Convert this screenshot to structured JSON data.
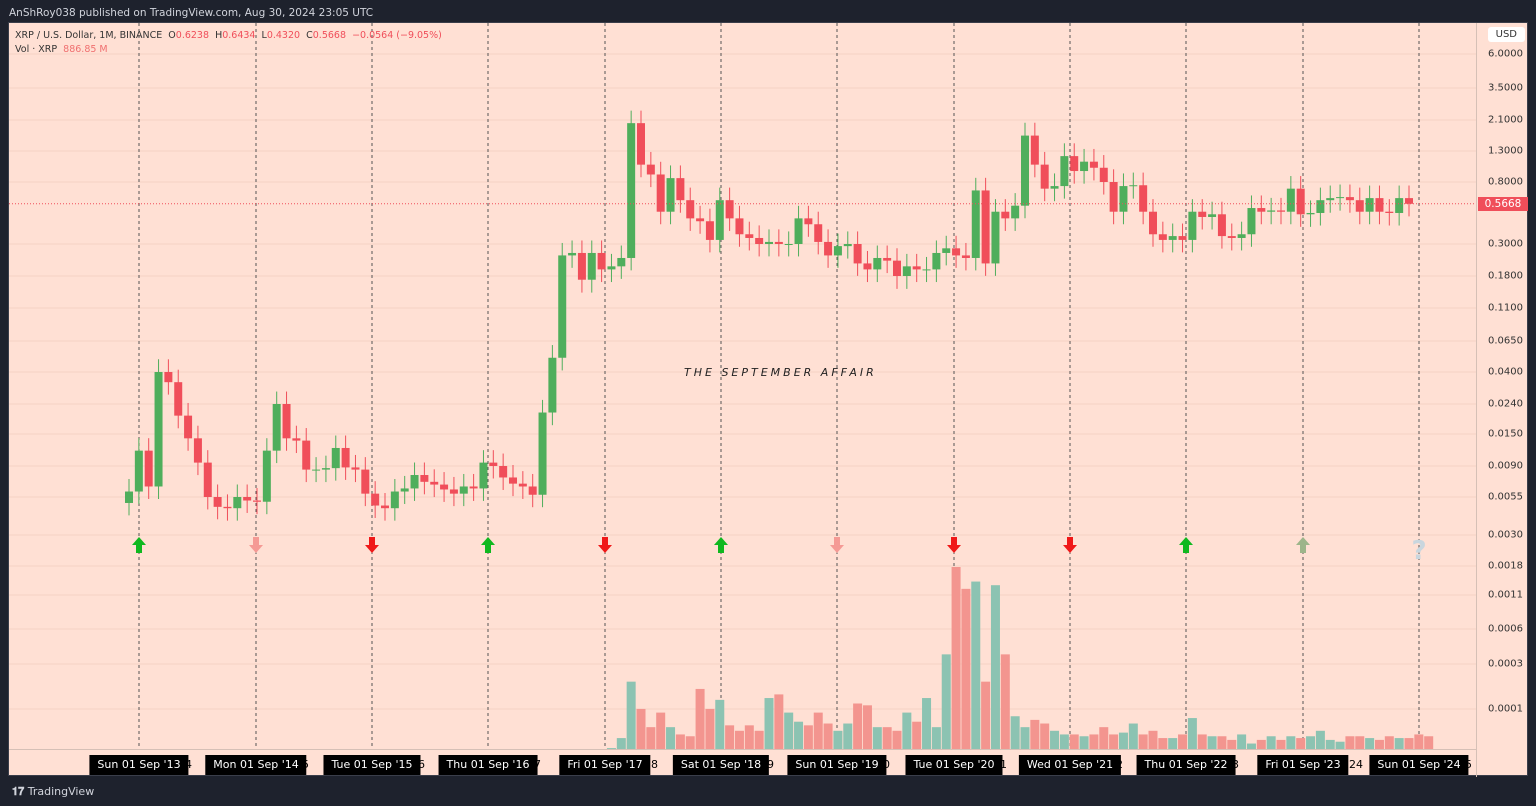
{
  "publisher": "AnShRoy038 published on TradingView.com, Aug 30, 2024 23:05 UTC",
  "legend": {
    "symbol": "XRP / U.S. Dollar, 1M, BINANCE",
    "o_label": "O",
    "o": "0.6238",
    "h_label": "H",
    "h": "0.6434",
    "l_label": "L",
    "l": "0.4320",
    "c_label": "C",
    "c": "0.5668",
    "change": "−0.0564 (−9.05%)",
    "vol_label": "Vol · XRP",
    "vol": "886.85 M"
  },
  "currency": "USD",
  "last_price": "0.5668",
  "footer": "TradingView",
  "colors": {
    "up": "#4fae5c",
    "down": "#f04e5a",
    "vol_up": "#8cc3b2",
    "vol_down": "#f3958f",
    "bg": "#ffe0d4"
  },
  "chart_data": {
    "type": "candlestick",
    "title": "THE SEPTEMBER AFFAIR",
    "scale": "log",
    "start": "Aug 2013",
    "interval": "1M",
    "y_ticks": [
      "6.0000",
      "3.5000",
      "2.1000",
      "1.3000",
      "0.8000",
      "0.3000",
      "0.1800",
      "0.1100",
      "0.0650",
      "0.0400",
      "0.0240",
      "0.0150",
      "0.0090",
      "0.0055",
      "0.0030",
      "0.0018",
      "0.0011",
      "0.0006",
      "0.0003",
      "0.0001"
    ],
    "x_labels": [
      "Sun 01 Sep '13",
      "Mon 01 Sep '14",
      "Tue 01 Sep '15",
      "Thu 01 Sep '16",
      "Fri 01 Sep '17",
      "Sat 01 Sep '18",
      "Sun 01 Sep '19",
      "Tue 01 Sep '20",
      "Wed 01 Sep '21",
      "Thu 01 Sep '22",
      "Fri 01 Sep '23",
      "Sun 01 Sep '24"
    ],
    "x_suffix": [
      "4",
      "5",
      "6",
      "7",
      "8",
      "9",
      "0",
      "1",
      "2",
      "3",
      "24",
      "5"
    ],
    "september_signals": [
      "up",
      "down-faded",
      "down",
      "up",
      "down",
      "up",
      "down-faded",
      "down",
      "down",
      "up",
      "up-faded",
      "unknown"
    ],
    "first_open": 0.005,
    "closes": [
      0.006,
      0.0115,
      0.0065,
      0.04,
      0.034,
      0.02,
      0.014,
      0.0095,
      0.0055,
      0.0047,
      0.0046,
      0.0055,
      0.0052,
      0.0051,
      0.0115,
      0.024,
      0.014,
      0.0135,
      0.0085,
      0.0085,
      0.0087,
      0.012,
      0.0088,
      0.0085,
      0.0058,
      0.0048,
      0.0046,
      0.006,
      0.0063,
      0.0078,
      0.007,
      0.0067,
      0.0062,
      0.0058,
      0.0065,
      0.0063,
      0.0095,
      0.009,
      0.0075,
      0.0068,
      0.0065,
      0.0057,
      0.021,
      0.05,
      0.25,
      0.26,
      0.17,
      0.26,
      0.2,
      0.21,
      0.24,
      2.0,
      1.05,
      0.9,
      0.5,
      0.85,
      0.6,
      0.45,
      0.43,
      0.32,
      0.6,
      0.45,
      0.35,
      0.33,
      0.3,
      0.31,
      0.3,
      0.3,
      0.45,
      0.41,
      0.31,
      0.25,
      0.29,
      0.3,
      0.22,
      0.2,
      0.24,
      0.23,
      0.18,
      0.21,
      0.2,
      0.2,
      0.26,
      0.28,
      0.25,
      0.24,
      0.7,
      0.22,
      0.5,
      0.45,
      0.55,
      1.65,
      1.05,
      0.72,
      0.75,
      1.2,
      0.95,
      1.1,
      1.0,
      0.8,
      0.5,
      0.75,
      0.76,
      0.5,
      0.35,
      0.32,
      0.34,
      0.32,
      0.5,
      0.46,
      0.48,
      0.34,
      0.33,
      0.35,
      0.53,
      0.5,
      0.51,
      0.5,
      0.72,
      0.48,
      0.49,
      0.6,
      0.62,
      0.63,
      0.6,
      0.5,
      0.62,
      0.5,
      0.49,
      0.62,
      0.5668
    ],
    "volume_relative": [
      0,
      0,
      0,
      0,
      0,
      0,
      0,
      0,
      0,
      0,
      0,
      0,
      0,
      0,
      0,
      0,
      0,
      0,
      0,
      0,
      0,
      0,
      0,
      0,
      0,
      0,
      0,
      0,
      0,
      0,
      0,
      0,
      0,
      0,
      0,
      0,
      0,
      0,
      0,
      0,
      0,
      0,
      0,
      0,
      0,
      0,
      0,
      0,
      0,
      0.005,
      0.06,
      0.37,
      0.22,
      0.12,
      0.2,
      0.12,
      0.08,
      0.07,
      0.33,
      0.22,
      0.27,
      0.13,
      0.1,
      0.13,
      0.1,
      0.28,
      0.3,
      0.2,
      0.15,
      0.13,
      0.2,
      0.14,
      0.1,
      0.14,
      0.25,
      0.24,
      0.12,
      0.12,
      0.1,
      0.2,
      0.15,
      0.28,
      0.12,
      0.52,
      1.0,
      0.88,
      0.92,
      0.37,
      0.9,
      0.52,
      0.18,
      0.12,
      0.16,
      0.14,
      0.1,
      0.08,
      0.08,
      0.07,
      0.08,
      0.12,
      0.08,
      0.09,
      0.14,
      0.08,
      0.1,
      0.06,
      0.06,
      0.08,
      0.17,
      0.08,
      0.07,
      0.07,
      0.05,
      0.08,
      0.03,
      0.05,
      0.07,
      0.05,
      0.07,
      0.06,
      0.07,
      0.1,
      0.05,
      0.04,
      0.07,
      0.07,
      0.06,
      0.05,
      0.07,
      0.06,
      0.06,
      0.08,
      0.07
    ]
  }
}
